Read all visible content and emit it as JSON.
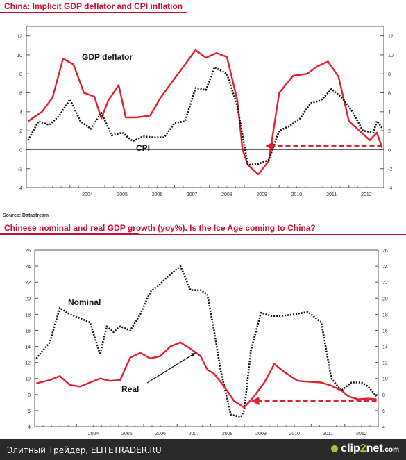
{
  "chart_data": [
    {
      "type": "line",
      "title": "China: Implicit GDP deflator and CPI inflation",
      "ylim": [
        -4,
        13
      ],
      "yticks": [
        -4,
        -2,
        0,
        2,
        4,
        6,
        8,
        10,
        12
      ],
      "year_labels": [
        "2004",
        "2005",
        "2006",
        "2007",
        "2008",
        "2009",
        "2010",
        "2011",
        "2012"
      ],
      "series": [
        {
          "name": "GDP deflator",
          "color": "#e0202e",
          "x": [
            2002.8,
            2003.2,
            2003.5,
            2003.8,
            2004.1,
            2004.4,
            2004.7,
            2004.9,
            2005.1,
            2005.4,
            2005.6,
            2005.9,
            2006.3,
            2006.6,
            2006.9,
            2007.2,
            2007.6,
            2007.9,
            2008.2,
            2008.5,
            2008.8,
            2008.95,
            2009.1,
            2009.4,
            2009.7,
            2010.0,
            2010.4,
            2010.8,
            2011.1,
            2011.4,
            2011.7,
            2012.0,
            2012.3,
            2012.6,
            2012.8,
            2012.95
          ],
          "values": [
            3.0,
            4.0,
            5.5,
            9.6,
            9.0,
            6.0,
            5.6,
            3.3,
            5.2,
            6.8,
            3.4,
            3.4,
            3.6,
            5.5,
            7.0,
            8.5,
            10.5,
            9.7,
            10.2,
            9.8,
            5.2,
            0.0,
            -1.6,
            -2.6,
            -1.2,
            6.0,
            7.8,
            8.0,
            8.8,
            9.3,
            7.7,
            3.0,
            2.0,
            1.0,
            1.8,
            0.2
          ]
        },
        {
          "name": "CPI",
          "color": "#111111",
          "x": [
            2002.8,
            2003.1,
            2003.4,
            2003.7,
            2004.0,
            2004.3,
            2004.6,
            2004.9,
            2005.2,
            2005.5,
            2005.8,
            2006.1,
            2006.4,
            2006.7,
            2007.0,
            2007.3,
            2007.6,
            2007.9,
            2008.15,
            2008.5,
            2008.8,
            2009.1,
            2009.4,
            2009.7,
            2010.0,
            2010.3,
            2010.6,
            2010.9,
            2011.2,
            2011.5,
            2011.8,
            2012.1,
            2012.4,
            2012.7,
            2012.8,
            2012.95
          ],
          "values": [
            1.0,
            3.0,
            2.6,
            3.6,
            5.3,
            3.0,
            2.2,
            3.9,
            1.5,
            1.8,
            0.9,
            1.4,
            1.3,
            1.3,
            2.8,
            3.0,
            6.5,
            6.3,
            8.7,
            8.0,
            4.6,
            -1.6,
            -1.5,
            -1.1,
            2.0,
            2.5,
            3.3,
            4.9,
            5.2,
            6.4,
            5.5,
            4.0,
            2.0,
            1.8,
            3.0,
            2.3
          ]
        }
      ],
      "annotations": [
        "GDP deflator",
        "CPI"
      ],
      "arrow_color": "#e0202e"
    },
    {
      "type": "line",
      "title": "Chinese nominal and real GDP growth (yoy%). Is the Ice Age coming to China?",
      "ylim": [
        4,
        26
      ],
      "yticks": [
        4,
        6,
        8,
        10,
        12,
        14,
        16,
        18,
        20,
        22,
        24,
        26
      ],
      "year_labels": [
        "2004",
        "2005",
        "2006",
        "2007",
        "2008",
        "2009",
        "2010",
        "2011",
        "2012"
      ],
      "series": [
        {
          "name": "Nominal",
          "color": "#111111",
          "x": [
            2002.8,
            2003.2,
            2003.5,
            2003.8,
            2004.1,
            2004.4,
            2004.7,
            2004.9,
            2005.1,
            2005.3,
            2005.6,
            2005.9,
            2006.2,
            2006.5,
            2006.8,
            2007.1,
            2007.4,
            2007.7,
            2007.9,
            2008.1,
            2008.3,
            2008.6,
            2008.9,
            2009.0,
            2009.2,
            2009.5,
            2009.8,
            2010.1,
            2010.5,
            2010.9,
            2011.3,
            2011.6,
            2011.9,
            2012.2,
            2012.5,
            2012.7,
            2012.95
          ],
          "values": [
            12.5,
            14.5,
            18.8,
            18.0,
            17.5,
            17.0,
            13.0,
            16.5,
            15.8,
            16.5,
            16.0,
            18.0,
            20.8,
            21.8,
            23.0,
            24.0,
            21.0,
            21.0,
            20.5,
            16.0,
            11.0,
            5.5,
            5.2,
            6.0,
            13.5,
            18.2,
            17.8,
            17.8,
            18.0,
            18.3,
            17.0,
            10.0,
            8.5,
            9.5,
            9.5,
            9.0,
            7.8
          ]
        },
        {
          "name": "Real",
          "color": "#e0202e",
          "x": [
            2002.8,
            2003.2,
            2003.5,
            2003.8,
            2004.1,
            2004.4,
            2004.7,
            2005.0,
            2005.3,
            2005.6,
            2005.9,
            2006.2,
            2006.5,
            2006.8,
            2007.1,
            2007.4,
            2007.7,
            2007.9,
            2008.1,
            2008.4,
            2008.7,
            2009.0,
            2009.3,
            2009.6,
            2009.9,
            2010.2,
            2010.6,
            2010.9,
            2011.3,
            2011.6,
            2011.9,
            2012.1,
            2012.4,
            2012.7,
            2012.95
          ],
          "values": [
            9.4,
            9.8,
            10.3,
            9.2,
            9.0,
            9.5,
            10.0,
            9.7,
            9.8,
            12.6,
            13.2,
            12.5,
            12.8,
            14.0,
            14.5,
            13.7,
            12.8,
            11.1,
            10.6,
            9.0,
            7.2,
            6.4,
            7.8,
            9.5,
            11.8,
            10.8,
            9.7,
            9.6,
            9.5,
            9.1,
            8.5,
            7.8,
            7.4,
            7.5,
            7.4
          ]
        }
      ],
      "annotations": [
        "Nominal",
        "Real"
      ],
      "arrow_color": "#e0202e"
    }
  ],
  "source": "Source: Datastream",
  "footer": {
    "left_text": "Элитный Трейдер, ELITETRADER.RU",
    "logo_main": "clip",
    "logo_num": "2",
    "logo_end": "net",
    "logo_tld": ".com"
  }
}
